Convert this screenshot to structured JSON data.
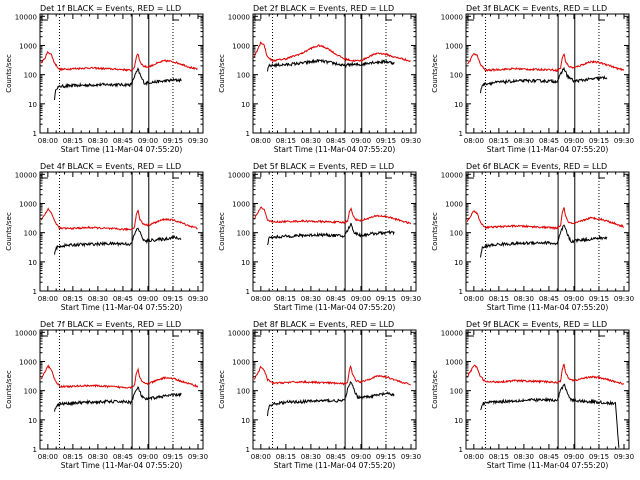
{
  "colors": {
    "events": "#000000",
    "lld": "#e00000",
    "axis": "#000000"
  },
  "figure": {
    "rows": 3,
    "cols": 3,
    "y_label": "Counts/sec",
    "x_label": "Start Time (11-Mar-04 07:55:20)",
    "x_ticks": [
      0,
      15,
      30,
      45,
      60,
      75,
      90
    ],
    "x_tick_labels": [
      "08:00",
      "08:15",
      "08:30",
      "08:45",
      "09:00",
      "09:15",
      "09:30"
    ],
    "y_ticks": [
      1,
      10,
      100,
      1000,
      10000
    ],
    "y_tick_labels": [
      "1",
      "10",
      "100",
      "1000",
      "10000"
    ]
  },
  "chart_data": [
    {
      "type": "line",
      "title": "Det 1f BLACK = Events, RED = LLD",
      "xlim": [
        -4.7,
        93
      ],
      "ylim": [
        1,
        12000
      ],
      "y_scale": "log",
      "x_unit": "minutes after 08:00",
      "dotted_lines": [
        7,
        75
      ],
      "solid_lines": [
        50.5,
        60.5
      ],
      "series": [
        {
          "name": "Events",
          "color": "#000000",
          "x": [
            4,
            5,
            8,
            15,
            25,
            35,
            45,
            50,
            52,
            54,
            56,
            58,
            62,
            70,
            75,
            80
          ],
          "y": [
            15,
            35,
            40,
            42,
            44,
            46,
            45,
            45,
            90,
            150,
            80,
            50,
            55,
            60,
            65,
            65
          ]
        },
        {
          "name": "LLD",
          "color": "#e00000",
          "x": [
            -4,
            -2,
            0,
            2,
            4,
            7,
            15,
            25,
            35,
            45,
            50,
            52,
            53,
            54,
            55,
            57,
            60,
            65,
            70,
            75,
            80,
            85,
            90
          ],
          "y": [
            250,
            350,
            600,
            500,
            250,
            150,
            160,
            170,
            160,
            150,
            140,
            180,
            400,
            550,
            300,
            200,
            180,
            240,
            300,
            280,
            230,
            180,
            150
          ]
        }
      ]
    },
    {
      "type": "line",
      "title": "Det 2f BLACK = Events, RED = LLD",
      "xlim": [
        -4.7,
        93
      ],
      "ylim": [
        1,
        12000
      ],
      "y_scale": "log",
      "x_unit": "minutes after 08:00",
      "dotted_lines": [
        7,
        75
      ],
      "solid_lines": [
        50.5,
        60.5
      ],
      "series": [
        {
          "name": "Events",
          "color": "#000000",
          "x": [
            4,
            5,
            8,
            15,
            25,
            35,
            45,
            50,
            52,
            54,
            56,
            60,
            65,
            75,
            80
          ],
          "y": [
            140,
            200,
            210,
            220,
            250,
            300,
            240,
            200,
            210,
            230,
            220,
            220,
            260,
            280,
            250
          ]
        },
        {
          "name": "LLD",
          "color": "#e00000",
          "x": [
            -4,
            -2,
            0,
            2,
            4,
            7,
            15,
            25,
            30,
            35,
            40,
            45,
            50,
            55,
            60,
            65,
            70,
            75,
            80,
            85,
            90
          ],
          "y": [
            400,
            700,
            1300,
            1000,
            400,
            300,
            350,
            550,
            800,
            1000,
            800,
            500,
            350,
            300,
            300,
            420,
            550,
            500,
            400,
            350,
            280
          ]
        }
      ]
    },
    {
      "type": "line",
      "title": "Det 3f BLACK = Events, RED = LLD",
      "xlim": [
        -4.7,
        93
      ],
      "ylim": [
        1,
        12000
      ],
      "y_scale": "log",
      "x_unit": "minutes after 08:00",
      "dotted_lines": [
        7,
        75
      ],
      "solid_lines": [
        50.5,
        60.5
      ],
      "series": [
        {
          "name": "Events",
          "color": "#000000",
          "x": [
            4,
            5,
            8,
            15,
            25,
            35,
            45,
            50,
            52,
            54,
            56,
            60,
            65,
            75,
            80
          ],
          "y": [
            25,
            45,
            50,
            55,
            60,
            62,
            60,
            60,
            100,
            170,
            90,
            60,
            65,
            75,
            80
          ]
        },
        {
          "name": "LLD",
          "color": "#e00000",
          "x": [
            -4,
            -2,
            0,
            2,
            4,
            7,
            15,
            25,
            35,
            45,
            50,
            52,
            53,
            54,
            55,
            57,
            60,
            65,
            70,
            75,
            80,
            85,
            90
          ],
          "y": [
            220,
            320,
            550,
            450,
            220,
            140,
            150,
            160,
            150,
            150,
            140,
            170,
            380,
            520,
            280,
            190,
            170,
            220,
            280,
            260,
            220,
            170,
            140
          ]
        }
      ]
    },
    {
      "type": "line",
      "title": "Det 4f BLACK = Events, RED = LLD",
      "xlim": [
        -4.7,
        93
      ],
      "ylim": [
        1,
        12000
      ],
      "y_scale": "log",
      "x_unit": "minutes after 08:00",
      "dotted_lines": [
        7,
        75
      ],
      "solid_lines": [
        50.5,
        60.5
      ],
      "series": [
        {
          "name": "Events",
          "color": "#000000",
          "x": [
            4,
            5,
            8,
            15,
            25,
            35,
            45,
            50,
            52,
            54,
            56,
            58,
            62,
            70,
            75,
            80
          ],
          "y": [
            20,
            30,
            35,
            38,
            40,
            42,
            42,
            40,
            90,
            150,
            80,
            50,
            55,
            60,
            70,
            60
          ]
        },
        {
          "name": "LLD",
          "color": "#e00000",
          "x": [
            -4,
            -2,
            0,
            2,
            4,
            7,
            15,
            25,
            35,
            45,
            50,
            52,
            53,
            54,
            55,
            57,
            60,
            65,
            70,
            75,
            80,
            85,
            90
          ],
          "y": [
            280,
            400,
            650,
            500,
            250,
            140,
            140,
            150,
            140,
            130,
            130,
            160,
            420,
            600,
            300,
            200,
            180,
            230,
            290,
            270,
            220,
            170,
            140
          ]
        }
      ]
    },
    {
      "type": "line",
      "title": "Det 5f BLACK = Events, RED = LLD",
      "xlim": [
        -4.7,
        93
      ],
      "ylim": [
        1,
        12000
      ],
      "y_scale": "log",
      "x_unit": "minutes after 08:00",
      "dotted_lines": [
        7,
        75
      ],
      "solid_lines": [
        50.5,
        60.5
      ],
      "series": [
        {
          "name": "Events",
          "color": "#000000",
          "x": [
            4,
            5,
            8,
            15,
            25,
            35,
            45,
            50,
            52,
            54,
            56,
            60,
            65,
            75,
            80
          ],
          "y": [
            40,
            65,
            70,
            75,
            80,
            85,
            80,
            75,
            120,
            200,
            100,
            80,
            90,
            100,
            100
          ]
        },
        {
          "name": "LLD",
          "color": "#e00000",
          "x": [
            -4,
            -2,
            0,
            2,
            4,
            7,
            15,
            25,
            35,
            45,
            50,
            52,
            53,
            54,
            55,
            57,
            60,
            65,
            70,
            75,
            80,
            85,
            90
          ],
          "y": [
            300,
            450,
            750,
            600,
            280,
            230,
            240,
            250,
            240,
            230,
            220,
            260,
            500,
            700,
            400,
            280,
            260,
            320,
            380,
            360,
            300,
            250,
            200
          ]
        }
      ]
    },
    {
      "type": "line",
      "title": "Det 6f BLACK = Events, RED = LLD",
      "xlim": [
        -4.7,
        93
      ],
      "ylim": [
        1,
        12000
      ],
      "y_scale": "log",
      "x_unit": "minutes after 08:00",
      "dotted_lines": [
        7,
        75
      ],
      "solid_lines": [
        50.5,
        60.5
      ],
      "series": [
        {
          "name": "Events",
          "color": "#000000",
          "x": [
            4,
            5,
            8,
            15,
            25,
            35,
            45,
            50,
            52,
            54,
            56,
            58,
            62,
            70,
            75,
            80
          ],
          "y": [
            15,
            30,
            35,
            40,
            42,
            45,
            45,
            40,
            100,
            180,
            90,
            50,
            55,
            60,
            65,
            65
          ]
        },
        {
          "name": "LLD",
          "color": "#e00000",
          "x": [
            -4,
            -2,
            0,
            2,
            4,
            7,
            15,
            25,
            35,
            45,
            50,
            52,
            53,
            54,
            55,
            57,
            60,
            65,
            70,
            75,
            80,
            85,
            90
          ],
          "y": [
            250,
            350,
            600,
            450,
            220,
            150,
            160,
            170,
            160,
            150,
            140,
            180,
            480,
            750,
            350,
            220,
            200,
            260,
            320,
            300,
            250,
            200,
            160
          ]
        }
      ]
    },
    {
      "type": "line",
      "title": "Det 7f BLACK = Events, RED = LLD",
      "xlim": [
        -4.7,
        93
      ],
      "ylim": [
        1,
        12000
      ],
      "y_scale": "log",
      "x_unit": "minutes after 08:00",
      "dotted_lines": [
        7,
        75
      ],
      "solid_lines": [
        50.5,
        60.5
      ],
      "series": [
        {
          "name": "Events",
          "color": "#000000",
          "x": [
            4,
            5,
            8,
            15,
            25,
            35,
            45,
            50,
            52,
            54,
            56,
            58,
            62,
            70,
            75,
            80
          ],
          "y": [
            20,
            30,
            35,
            38,
            40,
            42,
            42,
            40,
            80,
            130,
            70,
            50,
            55,
            65,
            70,
            75
          ]
        },
        {
          "name": "LLD",
          "color": "#e00000",
          "x": [
            -4,
            -2,
            0,
            2,
            4,
            7,
            15,
            25,
            35,
            45,
            50,
            52,
            53,
            54,
            55,
            57,
            60,
            65,
            70,
            75,
            80,
            85,
            90
          ],
          "y": [
            250,
            400,
            700,
            550,
            250,
            140,
            140,
            150,
            140,
            130,
            130,
            160,
            400,
            550,
            280,
            190,
            170,
            220,
            280,
            260,
            210,
            170,
            140
          ]
        }
      ]
    },
    {
      "type": "line",
      "title": "Det 8f BLACK = Events, RED = LLD",
      "xlim": [
        -4.7,
        93
      ],
      "ylim": [
        1,
        12000
      ],
      "y_scale": "log",
      "x_unit": "minutes after 08:00",
      "dotted_lines": [
        7,
        75
      ],
      "solid_lines": [
        50.5,
        60.5
      ],
      "series": [
        {
          "name": "Events",
          "color": "#000000",
          "x": [
            4,
            5,
            8,
            15,
            25,
            35,
            45,
            50,
            52,
            54,
            56,
            58,
            62,
            70,
            75,
            80
          ],
          "y": [
            15,
            30,
            35,
            40,
            42,
            45,
            45,
            45,
            110,
            200,
            100,
            60,
            60,
            70,
            80,
            70
          ]
        },
        {
          "name": "LLD",
          "color": "#e00000",
          "x": [
            -4,
            -2,
            0,
            2,
            4,
            7,
            15,
            25,
            35,
            45,
            50,
            52,
            53,
            54,
            55,
            57,
            60,
            65,
            70,
            75,
            80,
            85,
            90
          ],
          "y": [
            250,
            380,
            650,
            500,
            240,
            180,
            190,
            200,
            190,
            180,
            170,
            200,
            500,
            700,
            350,
            220,
            200,
            250,
            320,
            300,
            240,
            190,
            160
          ]
        }
      ]
    },
    {
      "type": "line",
      "title": "Det 9f BLACK = Events, RED = LLD",
      "xlim": [
        -4.7,
        93
      ],
      "ylim": [
        1,
        12000
      ],
      "y_scale": "log",
      "x_unit": "minutes after 08:00",
      "dotted_lines": [
        7,
        75
      ],
      "solid_lines": [
        50.5,
        60.5
      ],
      "series": [
        {
          "name": "Events",
          "color": "#000000",
          "x": [
            4,
            5,
            8,
            15,
            25,
            35,
            45,
            50,
            52,
            54,
            56,
            58,
            62,
            70,
            75,
            80,
            85,
            86,
            87
          ],
          "y": [
            20,
            35,
            40,
            42,
            45,
            48,
            48,
            45,
            100,
            170,
            90,
            50,
            45,
            42,
            40,
            38,
            35,
            5,
            1
          ]
        },
        {
          "name": "LLD",
          "color": "#e00000",
          "x": [
            -4,
            -2,
            0,
            2,
            4,
            7,
            15,
            25,
            35,
            45,
            50,
            52,
            53,
            54,
            55,
            57,
            60,
            65,
            70,
            75,
            80,
            85,
            90
          ],
          "y": [
            300,
            450,
            750,
            600,
            300,
            200,
            200,
            220,
            210,
            200,
            190,
            220,
            550,
            800,
            400,
            260,
            220,
            260,
            300,
            280,
            240,
            200,
            170
          ]
        }
      ]
    }
  ]
}
